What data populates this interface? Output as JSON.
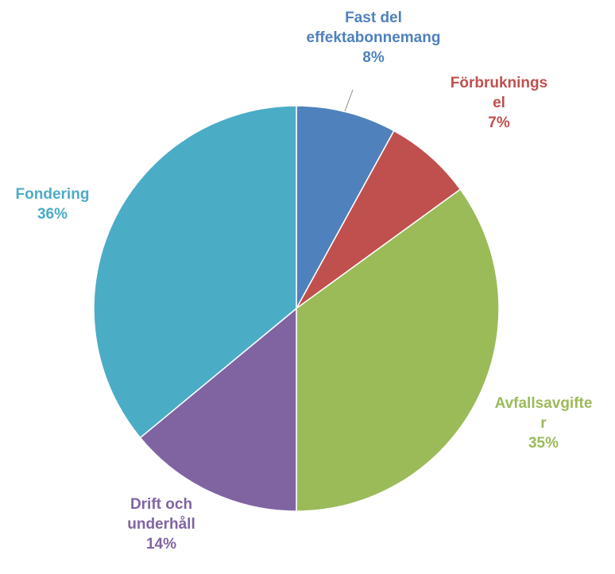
{
  "chart_data": {
    "type": "pie",
    "title": "",
    "slices": [
      {
        "label_lines": [
          "Fast del",
          "effektabonnemang"
        ],
        "percent_label": "8%",
        "value": 8,
        "color": "#4F81BD"
      },
      {
        "label_lines": [
          "Förbruknings",
          "el"
        ],
        "percent_label": "7%",
        "value": 7,
        "color": "#C0504D"
      },
      {
        "label_lines": [
          "Avfallsavgifte",
          "r"
        ],
        "percent_label": "35%",
        "value": 35,
        "color": "#9BBB59"
      },
      {
        "label_lines": [
          "Drift och",
          "underhåll"
        ],
        "percent_label": "14%",
        "value": 14,
        "color": "#8064A2"
      },
      {
        "label_lines": [
          "Fondering"
        ],
        "percent_label": "36%",
        "value": 36,
        "color": "#4BACC6"
      }
    ],
    "legend": "none",
    "start_angle": "12 o'clock",
    "direction": "clockwise"
  }
}
